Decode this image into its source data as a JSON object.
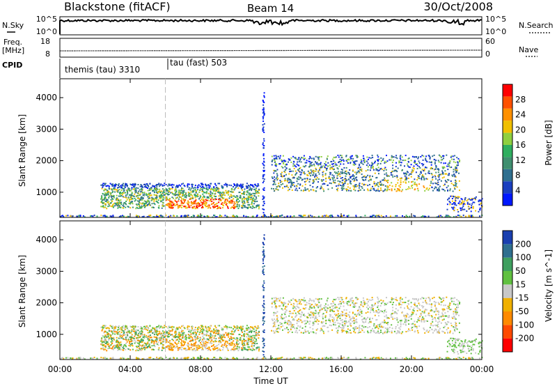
{
  "header": {
    "station": "Blackstone (fitACF)",
    "beam": "Beam 14",
    "date": "30/Oct/2008"
  },
  "top_panels": {
    "nsky_label": "N.Sky",
    "nsky_ticks": [
      "10^5",
      "10^0"
    ],
    "nsearch_label": "N.Search",
    "nsearch_ticks": [
      "10^5",
      "10^0"
    ],
    "freq_label_line1": "Freq.",
    "freq_label_line2": "[MHz]",
    "freq_ticks": [
      "18",
      "8"
    ],
    "nave_label": "Nave",
    "nave_ticks": [
      "60",
      "0"
    ],
    "cpid_label": "CPID",
    "cpid_segments": [
      {
        "label": "themis (tau) 3310",
        "start_hour": 0
      },
      {
        "label": "tau (fast) 503",
        "start_hour": 6.0
      }
    ]
  },
  "chart_data": [
    {
      "type": "heatmap",
      "name": "power",
      "ylabel": "Slant Range [km]",
      "xlabel": "",
      "ylim": [
        200,
        4600
      ],
      "xlim_hours": [
        0,
        24
      ],
      "yticks": [
        1000,
        2000,
        3000,
        4000
      ],
      "colorbar": {
        "label": "Power [dB]",
        "ticks": [
          4,
          8,
          12,
          16,
          20,
          24,
          28
        ],
        "colors": [
          "#0018ff",
          "#1a3fbf",
          "#2f6f8f",
          "#3f8f6f",
          "#2fae5f",
          "#8fcf3f",
          "#f0c000",
          "#ff9000",
          "#ff5000",
          "#ff0000"
        ]
      },
      "regions": [
        {
          "t0": 2.3,
          "t1": 11.3,
          "r0": 500,
          "r1": 1300,
          "level": "mixed"
        },
        {
          "t0": 6.0,
          "t1": 10.0,
          "r0": 550,
          "r1": 800,
          "level": "high"
        },
        {
          "t0": 12.0,
          "t1": 22.7,
          "r0": 1050,
          "r1": 2200,
          "level": "mixed"
        },
        {
          "t0": 18.5,
          "t1": 21.0,
          "r0": 1100,
          "r1": 1400,
          "level": "high"
        }
      ]
    },
    {
      "type": "heatmap",
      "name": "velocity",
      "ylabel": "Slant Range [km]",
      "xlabel": "Time UT",
      "ylim": [
        200,
        4600
      ],
      "xlim_hours": [
        0,
        24
      ],
      "yticks": [
        1000,
        2000,
        3000,
        4000
      ],
      "xticks": [
        "00:00",
        "04:00",
        "08:00",
        "12:00",
        "16:00",
        "20:00",
        "00:00"
      ],
      "colorbar": {
        "label": "Velocity [m s^-1]",
        "ticks": [
          "200",
          "100",
          "50",
          "15",
          "-15",
          "-50",
          "-100",
          "-200"
        ],
        "colors": [
          "#1a3faf",
          "#2f6f8f",
          "#3f9f5f",
          "#60c040",
          "#c8c8c8",
          "#f0b000",
          "#ff8a00",
          "#ff4a00",
          "#ff0000"
        ]
      }
    }
  ]
}
